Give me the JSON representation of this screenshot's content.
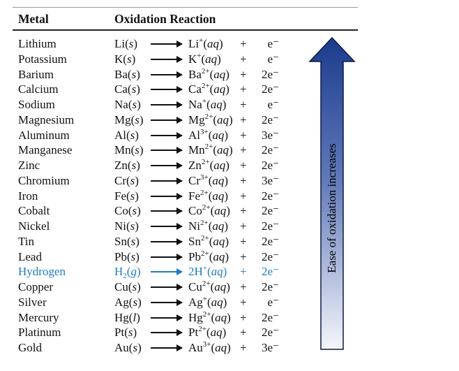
{
  "table": {
    "headers": {
      "metal": "Metal",
      "reaction": "Oxidation Reaction"
    },
    "arrow_label": "Ease of oxidation increases",
    "highlight_color": "#1f7bc1",
    "arrow_colors": {
      "top": "#1b3b8c",
      "bottom": "#f4f6fb",
      "outline": "#0a1a40"
    },
    "rows": [
      {
        "metal": "Lithium",
        "sym": "Li",
        "state": "s",
        "ion": "Li",
        "charge": "+",
        "electrons": "e⁻"
      },
      {
        "metal": "Potassium",
        "sym": "K",
        "state": "s",
        "ion": "K",
        "charge": "+",
        "electrons": "e⁻"
      },
      {
        "metal": "Barium",
        "sym": "Ba",
        "state": "s",
        "ion": "Ba",
        "charge": "2+",
        "electrons": "2e⁻"
      },
      {
        "metal": "Calcium",
        "sym": "Ca",
        "state": "s",
        "ion": "Ca",
        "charge": "2+",
        "electrons": "2e⁻"
      },
      {
        "metal": "Sodium",
        "sym": "Na",
        "state": "s",
        "ion": "Na",
        "charge": "+",
        "electrons": "e⁻"
      },
      {
        "metal": "Magnesium",
        "sym": "Mg",
        "state": "s",
        "ion": "Mg",
        "charge": "2+",
        "electrons": "2e⁻"
      },
      {
        "metal": "Aluminum",
        "sym": "Al",
        "state": "s",
        "ion": "Al",
        "charge": "3+",
        "electrons": "3e⁻"
      },
      {
        "metal": "Manganese",
        "sym": "Mn",
        "state": "s",
        "ion": "Mn",
        "charge": "2+",
        "electrons": "2e⁻"
      },
      {
        "metal": "Zinc",
        "sym": "Zn",
        "state": "s",
        "ion": "Zn",
        "charge": "2+",
        "electrons": "2e⁻"
      },
      {
        "metal": "Chromium",
        "sym": "Cr",
        "state": "s",
        "ion": "Cr",
        "charge": "3+",
        "electrons": "3e⁻"
      },
      {
        "metal": "Iron",
        "sym": "Fe",
        "state": "s",
        "ion": "Fe",
        "charge": "2+",
        "electrons": "2e⁻"
      },
      {
        "metal": "Cobalt",
        "sym": "Co",
        "state": "s",
        "ion": "Co",
        "charge": "2+",
        "electrons": "2e⁻"
      },
      {
        "metal": "Nickel",
        "sym": "Ni",
        "state": "s",
        "ion": "Ni",
        "charge": "2+",
        "electrons": "2e⁻"
      },
      {
        "metal": "Tin",
        "sym": "Sn",
        "state": "s",
        "ion": "Sn",
        "charge": "2+",
        "electrons": "2e⁻"
      },
      {
        "metal": "Lead",
        "sym": "Pb",
        "state": "s",
        "ion": "Pb",
        "charge": "2+",
        "electrons": "2e⁻"
      },
      {
        "metal": "Hydrogen",
        "sym": "H",
        "sym_sub": "2",
        "state": "g",
        "ion_coef": "2",
        "ion": "H",
        "charge": "+",
        "electrons": "2e⁻",
        "highlight": true
      },
      {
        "metal": "Copper",
        "sym": "Cu",
        "state": "s",
        "ion": "Cu",
        "charge": "2+",
        "electrons": "2e⁻"
      },
      {
        "metal": "Silver",
        "sym": "Ag",
        "state": "s",
        "ion": "Ag",
        "charge": "+",
        "electrons": "e⁻"
      },
      {
        "metal": "Mercury",
        "sym": "Hg",
        "state": "l",
        "ion": "Hg",
        "charge": "2+",
        "electrons": "2e⁻"
      },
      {
        "metal": "Platinum",
        "sym": "Pt",
        "state": "s",
        "ion": "Pt",
        "charge": "2+",
        "electrons": "2e⁻"
      },
      {
        "metal": "Gold",
        "sym": "Au",
        "state": "s",
        "ion": "Au",
        "charge": "3+",
        "electrons": "3e⁻"
      }
    ]
  }
}
